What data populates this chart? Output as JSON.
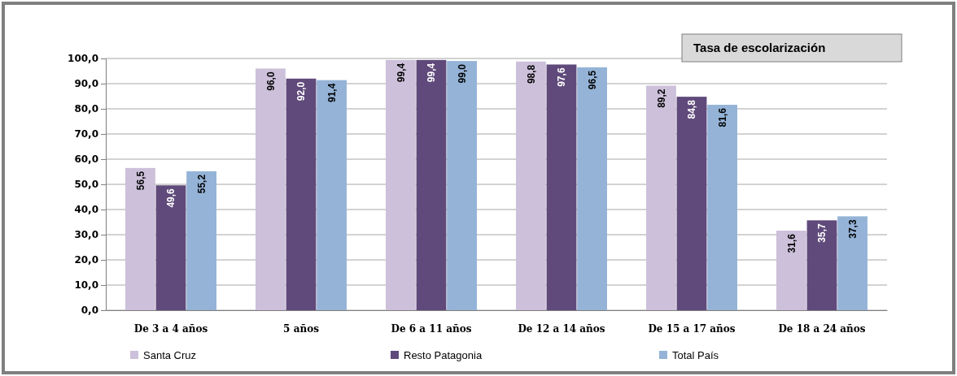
{
  "chart_data": {
    "type": "bar",
    "title": "Tasa de escolarización",
    "categories": [
      "De 3 a 4 años",
      "5 años",
      "De 6 a 11 años",
      "De 12 a 14 años",
      "De 15 a 17 años",
      "De 18 a 24 años"
    ],
    "series": [
      {
        "name": "Santa Cruz",
        "color": "#ccc0da",
        "values": [
          56.5,
          96.0,
          99.4,
          98.8,
          89.2,
          31.6
        ],
        "value_labels": [
          "56,5",
          "96,0",
          "99,4",
          "98,8",
          "89,2",
          "31,6"
        ]
      },
      {
        "name": "Resto Patagonia",
        "color": "#604a7b",
        "values": [
          49.6,
          92.0,
          99.4,
          97.6,
          84.8,
          35.7
        ],
        "value_labels": [
          "49,6",
          "92,0",
          "99,4",
          "97,6",
          "84,8",
          "35,7"
        ]
      },
      {
        "name": "Total País",
        "color": "#95b3d7",
        "values": [
          55.2,
          91.4,
          99.0,
          96.5,
          81.6,
          37.3
        ],
        "value_labels": [
          "55,2",
          "91,4",
          "99,0",
          "96,5",
          "81,6",
          "37,3"
        ]
      }
    ],
    "ylim": [
      0,
      100
    ],
    "yticks": [
      {
        "value": 0,
        "label": "0,0"
      },
      {
        "value": 10,
        "label": "10,0"
      },
      {
        "value": 20,
        "label": "20,0"
      },
      {
        "value": 30,
        "label": "30,0"
      },
      {
        "value": 40,
        "label": "40,0"
      },
      {
        "value": 50,
        "label": "50,0"
      },
      {
        "value": 60,
        "label": "60,0"
      },
      {
        "value": 70,
        "label": "70,0"
      },
      {
        "value": 80,
        "label": "80,0"
      },
      {
        "value": 90,
        "label": "90,0"
      },
      {
        "value": 100,
        "label": "100,0"
      }
    ],
    "grid": true,
    "legend": "bottom"
  }
}
